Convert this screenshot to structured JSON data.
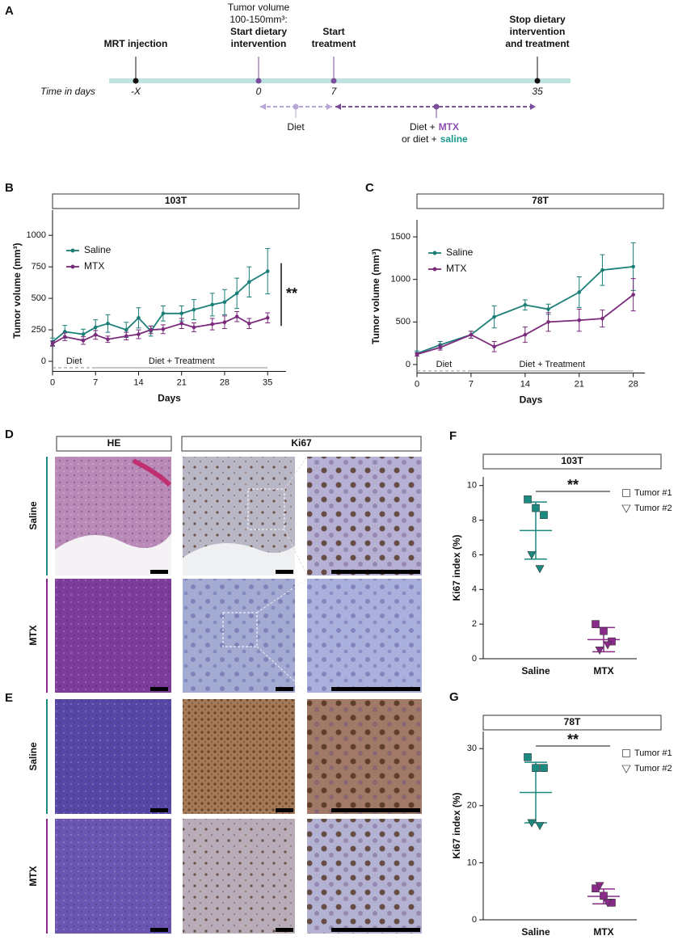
{
  "panel_labels": [
    "A",
    "B",
    "C",
    "D",
    "E",
    "F",
    "G"
  ],
  "timeline": {
    "time_label": "Time in days",
    "events": [
      {
        "time": "-X",
        "label": [
          "MRT injection"
        ]
      },
      {
        "time": "0",
        "note": [
          "Tumor volume",
          "100-150mm³:"
        ],
        "label": [
          "Start dietary",
          "intervention"
        ]
      },
      {
        "time": "7",
        "label": [
          "Start",
          "treatment"
        ]
      },
      {
        "time": "35",
        "label": [
          "Stop dietary",
          "intervention",
          "and treatment"
        ]
      }
    ],
    "arms": [
      {
        "label": "Diet"
      },
      {
        "line1": [
          "Diet +",
          "MTX"
        ],
        "line2": [
          "or diet +",
          "saline"
        ]
      }
    ]
  },
  "histology": {
    "columns": [
      "HE",
      "Ki67"
    ],
    "rows": [
      "Saline",
      "MTX",
      "Saline",
      "MTX"
    ]
  },
  "chart_data": [
    {
      "type": "line",
      "title": "103T",
      "x_label": "Days",
      "y_label": "Tumor volume (mm³)",
      "x": [
        0,
        2,
        5,
        7,
        9,
        12,
        14,
        16,
        18,
        21,
        23,
        26,
        28,
        30,
        32,
        35
      ],
      "xlim": [
        0,
        38
      ],
      "xticks": [
        0,
        7,
        14,
        21,
        28,
        35
      ],
      "ylim": [
        -80,
        1200
      ],
      "yticks": [
        0,
        250,
        500,
        750,
        1000
      ],
      "series": [
        {
          "name": "Saline",
          "color": "#1b7f78",
          "values": [
            155,
            235,
            215,
            270,
            300,
            250,
            345,
            240,
            380,
            380,
            410,
            450,
            470,
            540,
            630,
            715
          ],
          "errors": [
            30,
            50,
            40,
            60,
            70,
            60,
            80,
            40,
            60,
            60,
            80,
            90,
            100,
            120,
            120,
            180
          ]
        },
        {
          "name": "MTX",
          "color": "#7b2a7c",
          "values": [
            140,
            195,
            165,
            210,
            175,
            200,
            215,
            250,
            255,
            300,
            270,
            295,
            310,
            355,
            300,
            345
          ],
          "errors": [
            20,
            30,
            30,
            35,
            25,
            30,
            35,
            30,
            35,
            40,
            35,
            45,
            50,
            40,
            40,
            40
          ]
        }
      ],
      "periods": [
        {
          "label": "Diet",
          "start": 0,
          "end": 7,
          "style": "dashed"
        },
        {
          "label": "Diet + Treatment",
          "start": 7,
          "end": 35,
          "style": "solid"
        }
      ],
      "significance": "**"
    },
    {
      "type": "line",
      "title": "78T",
      "x_label": "Days",
      "y_label": "Tumor volume (mm³)",
      "x": [
        0,
        3,
        7,
        10,
        14,
        17,
        21,
        24,
        28
      ],
      "xlim": [
        0,
        29.5
      ],
      "xticks": [
        0,
        7,
        14,
        21,
        28
      ],
      "ylim": [
        -100,
        1700
      ],
      "yticks": [
        0,
        500,
        1000,
        1500
      ],
      "series": [
        {
          "name": "Saline",
          "color": "#1b7f78",
          "values": [
            130,
            230,
            350,
            560,
            700,
            650,
            850,
            1110,
            1150
          ],
          "errors": [
            30,
            40,
            40,
            130,
            60,
            60,
            180,
            180,
            280
          ]
        },
        {
          "name": "MTX",
          "color": "#7b2a7c",
          "values": [
            120,
            200,
            350,
            210,
            350,
            500,
            520,
            540,
            820
          ],
          "errors": [
            20,
            30,
            40,
            60,
            90,
            110,
            130,
            100,
            190
          ]
        }
      ],
      "periods": [
        {
          "label": "Diet",
          "start": 0,
          "end": 7,
          "style": "dashed"
        },
        {
          "label": "Diet + Treatment",
          "start": 7,
          "end": 28,
          "style": "solid"
        }
      ]
    },
    {
      "type": "dot",
      "title": "103T",
      "y_label": "Ki67 index (%)",
      "categories": [
        "Saline",
        "MTX"
      ],
      "colors": [
        "#1b8a80",
        "#8a2a8a"
      ],
      "ylim": [
        0,
        10.5
      ],
      "yticks": [
        0,
        2,
        4,
        6,
        8,
        10
      ],
      "series": [
        {
          "name": "Tumor #1",
          "marker": "square",
          "values": [
            [
              9.2,
              8.7,
              8.3
            ],
            [
              2.0,
              1.6,
              1.0
            ]
          ]
        },
        {
          "name": "Tumor #2",
          "marker": "triangle",
          "values": [
            [
              6.0,
              5.2
            ],
            [
              0.5,
              0.8
            ]
          ]
        }
      ],
      "means": [
        7.4,
        1.1
      ],
      "sds": [
        1.65,
        0.7
      ],
      "significance": "**"
    },
    {
      "type": "dot",
      "title": "78T",
      "y_label": "Ki67 index (%)",
      "categories": [
        "Saline",
        "MTX"
      ],
      "colors": [
        "#1b8a80",
        "#8a2a8a"
      ],
      "ylim": [
        0,
        33
      ],
      "yticks": [
        0,
        10,
        20,
        30
      ],
      "series": [
        {
          "name": "Tumor #1",
          "marker": "square",
          "values": [
            [
              28.5,
              26.6,
              26.6
            ],
            [
              5.5,
              4.2,
              3.0
            ]
          ]
        },
        {
          "name": "Tumor #2",
          "marker": "triangle",
          "values": [
            [
              17.0,
              16.5
            ],
            [
              6.0,
              3.0
            ]
          ]
        }
      ],
      "means": [
        22.3,
        4.1
      ],
      "sds": [
        5.3,
        1.3
      ],
      "significance": "**"
    }
  ]
}
